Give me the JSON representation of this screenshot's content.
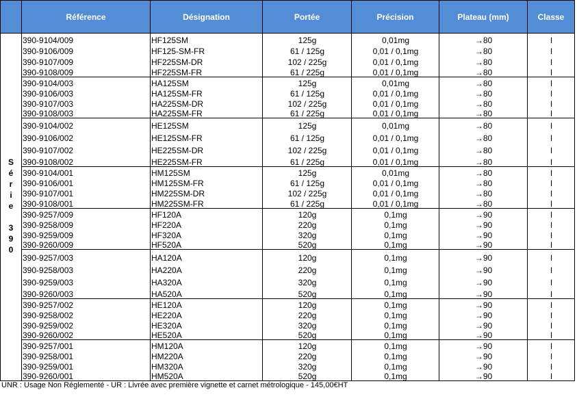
{
  "headers": [
    "Référence",
    "Désignation",
    "Portée",
    "Précision",
    "Plateau (mm)",
    "Classe"
  ],
  "series_label": "Série 390",
  "groups": [
    [
      [
        "390-9104/009",
        "HF125SM",
        "125g",
        "0,01mg",
        "→80",
        "I"
      ],
      [
        "390-9106/009",
        "HF125-SM-FR",
        "61 / 125g",
        "0,01 / 0,1mg",
        "→80",
        "I"
      ],
      [
        "390-9107/009",
        "HF225SM-DR",
        "102 / 225g",
        "0,01 / 0,1mg",
        "→80",
        "I"
      ],
      [
        "390-9108/009",
        "HF225SM-FR",
        "61 / 225g",
        "0,01 / 0,1mg",
        "→80",
        "I"
      ]
    ],
    [
      [
        "390-9104/003",
        "HA125SM",
        "125g",
        "0,01mg",
        "→80",
        "I"
      ],
      [
        "390-9106/003",
        "HA125SM-FR",
        "61 / 125g",
        "0,01 / 0,1mg",
        "→80",
        "I"
      ],
      [
        "390-9107/003",
        "HA225SM-DR",
        "102 / 225g",
        "0,01 / 0,1mg",
        "→80",
        "I"
      ],
      [
        "390-9108/003",
        "HA225SM-FR",
        "61 / 225g",
        "0,01 / 0,1mg",
        "→80",
        "I"
      ]
    ],
    [
      [
        "390-9104/002",
        "HE125SM",
        "125g",
        "0,01mg",
        "→80",
        "I"
      ],
      [
        "390-9106/002",
        "HE125SM-FR",
        "61 / 125g",
        "0,01 / 0,1mg",
        "→80",
        "I"
      ],
      [
        "390-9107/002",
        "HE225SM-DR",
        "102 / 225g",
        "0,01 / 0,1mg",
        "→80",
        "I"
      ],
      [
        "390-9108/002",
        "HE225SM-FR",
        "61 / 225g",
        "0,01 / 0,1mg",
        "→80",
        "I"
      ]
    ],
    [
      [
        "390-9104/001",
        "HM125SM",
        "125g",
        "0,01mg",
        "→80",
        "I"
      ],
      [
        "390-9106/001",
        "HM125SM-FR",
        "61 / 125g",
        "0,01 / 0,1mg",
        "→80",
        "I"
      ],
      [
        "390-9107/001",
        "HM225SM-DR",
        "102 / 225g",
        "0,01 / 0,1mg",
        "→80",
        "I"
      ],
      [
        "390-9108/001",
        "HM225SM-FR",
        "61 / 225g",
        "0,01 / 0,1mg",
        "→80",
        "I"
      ]
    ],
    [
      [
        "390-9257/009",
        "HF120A",
        "120g",
        "0,1mg",
        "→90",
        "I"
      ],
      [
        "390-9258/009",
        "HF220A",
        "220g",
        "0,1mg",
        "→90",
        "I"
      ],
      [
        "390-9259/009",
        "HF320A",
        "320g",
        "0,1mg",
        "→90",
        "I"
      ],
      [
        "390-9260/009",
        "HF520A",
        "520g",
        "0,1mg",
        "→90",
        "I"
      ]
    ],
    [
      [
        "390-9257/003",
        "HA120A",
        "120g",
        "0,1mg",
        "→90",
        "I"
      ],
      [
        "390-9258/003",
        "HA220A",
        "220g",
        "0,1mg",
        "→90",
        "I"
      ],
      [
        "390-9259/003",
        "HA320A",
        "320g",
        "0,1mg",
        "→90",
        "I"
      ],
      [
        "390-9260/003",
        "HA520A",
        "520g",
        "0,1mg",
        "→90",
        "I"
      ]
    ],
    [
      [
        "390-9257/002",
        "HE120A",
        "120g",
        "0,1mg",
        "→90",
        "I"
      ],
      [
        "390-9258/002",
        "HE220A",
        "220g",
        "0,1mg",
        "→90",
        "I"
      ],
      [
        "390-9259/002",
        "HE320A",
        "320g",
        "0,1mg",
        "→90",
        "I"
      ],
      [
        "390-9260/002",
        "HE520A",
        "520g",
        "0,1mg",
        "→90",
        "I"
      ]
    ],
    [
      [
        "390-9257/001",
        "HM120A",
        "120g",
        "0,1mg",
        "→90",
        "I"
      ],
      [
        "390-9258/001",
        "HM220A",
        "220g",
        "0,1mg",
        "→90",
        "I"
      ],
      [
        "390-9259/001",
        "HM320A",
        "320g",
        "0,1mg",
        "→90",
        "I"
      ],
      [
        "390-9260/001",
        "HM520A",
        "520g",
        "0,1mg",
        "→90",
        "I"
      ]
    ]
  ],
  "footnote": "UNR : Usage Non Réglementé - UR : Livrée avec première vignette et carnet métrologique - 145,00€HT",
  "colors": {
    "header_bg": "#538dd5",
    "header_text": "#ffffff"
  }
}
